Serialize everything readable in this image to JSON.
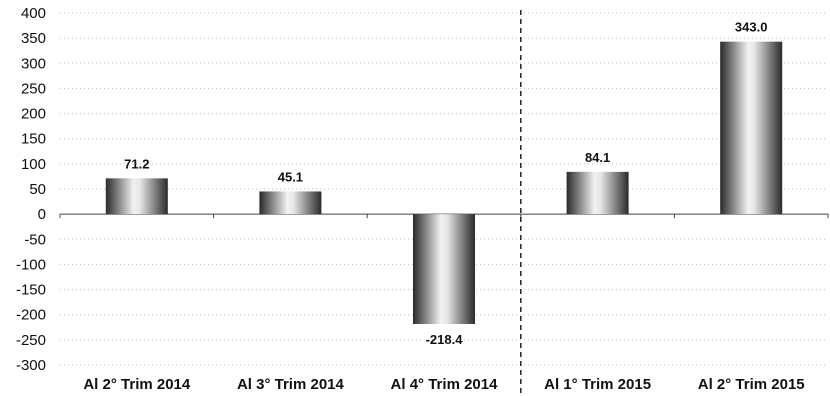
{
  "chart_data": {
    "type": "bar",
    "title": "",
    "xlabel": "",
    "ylabel": "",
    "categories": [
      "Al 2° Trim 2014",
      "Al 3° Trim 2014",
      "Al 4° Trim 2014",
      "Al 1° Trim 2015",
      "Al 2° Trim 2015"
    ],
    "values": [
      71.2,
      45.1,
      -218.4,
      84.1,
      343.0
    ],
    "value_labels": [
      "71.2",
      "45.1",
      "-218.4",
      "84.1",
      "343.0"
    ],
    "ylim": [
      -300,
      400
    ],
    "yticks": [
      400,
      350,
      300,
      250,
      200,
      150,
      100,
      50,
      0,
      -50,
      -100,
      -150,
      -200,
      -250,
      -300
    ],
    "grid": true,
    "separator_after_category_index": 2,
    "bar_color": "#8a8a8a",
    "grid_color": "#bdbdbd"
  }
}
